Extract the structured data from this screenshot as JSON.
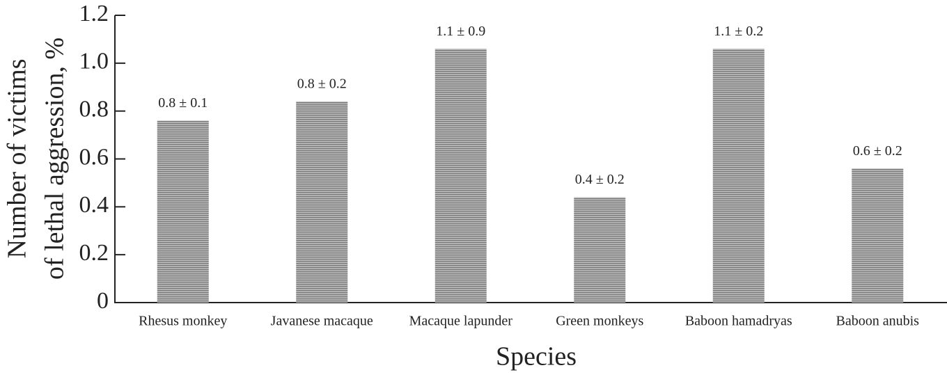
{
  "chart_data": {
    "type": "bar",
    "ylabel": [
      "Number of victims",
      "of lethal aggression, %"
    ],
    "xlabel": "Species",
    "categories": [
      "Rhesus monkey",
      "Javanese macaque",
      "Macaque lapunder",
      "Green monkeys",
      "Baboon hamadryas",
      "Baboon anubis"
    ],
    "values": [
      0.76,
      0.84,
      1.06,
      0.44,
      1.06,
      0.56
    ],
    "value_labels": [
      "0.8 ± 0.1",
      "0.8 ± 0.2",
      "1.1 ± 0.9",
      "0.4 ± 0.2",
      "1.1 ± 0.2",
      "0.6 ± 0.2"
    ],
    "color": "#9a9a9a",
    "ylim": [
      0,
      1.2
    ],
    "yticks": [
      0,
      0.2,
      0.4,
      0.6,
      {
        "value": 0.8,
        "label": "0.8"
      },
      {
        "value": 1,
        "label": "1.0"
      },
      1.2
    ]
  }
}
